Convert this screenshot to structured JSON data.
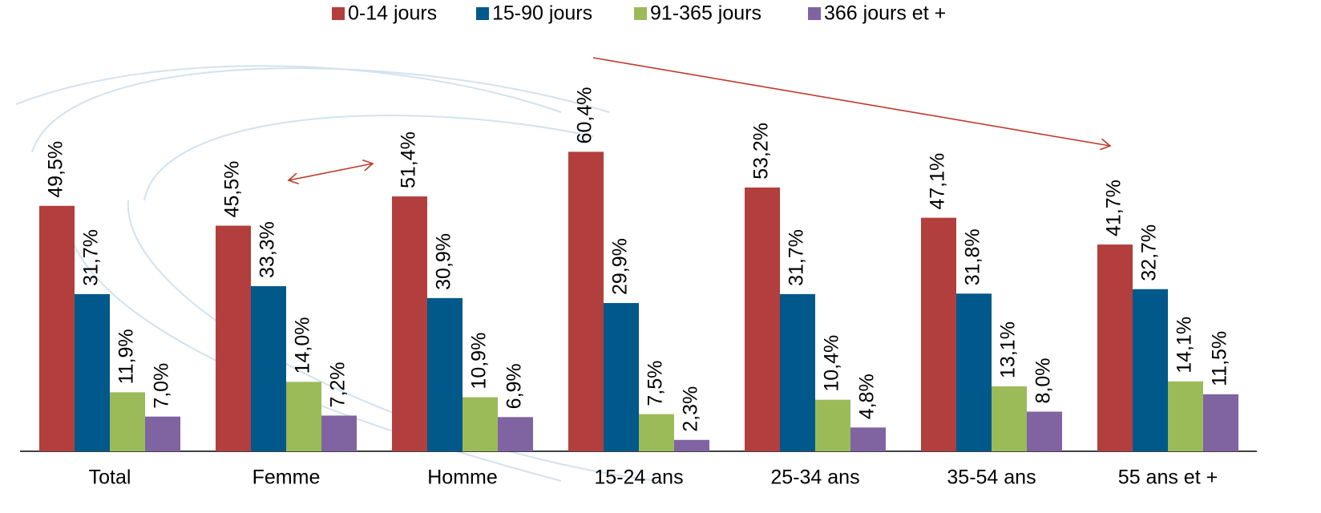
{
  "chart_data": {
    "type": "bar",
    "categories": [
      "Total",
      "Femme",
      "Homme",
      "15-24 ans",
      "25-34 ans",
      "35-54 ans",
      "55 ans et +"
    ],
    "series": [
      {
        "name": "0-14 jours",
        "color": "#b23f3d",
        "values": [
          49.5,
          45.5,
          51.4,
          60.4,
          53.2,
          47.1,
          41.7
        ],
        "value_labels": [
          "49,5%",
          "45,5%",
          "51,4%",
          "60,4%",
          "53,2%",
          "47,1%",
          "41,7%"
        ]
      },
      {
        "name": "15-90 jours",
        "color": "#00598a",
        "values": [
          31.7,
          33.3,
          30.9,
          29.9,
          31.7,
          31.8,
          32.7
        ],
        "value_labels": [
          "31,7%",
          "33,3%",
          "30,9%",
          "29,9%",
          "31,7%",
          "31,8%",
          "32,7%"
        ]
      },
      {
        "name": "91-365 jours",
        "color": "#9bbb59",
        "values": [
          11.9,
          14.0,
          10.9,
          7.5,
          10.4,
          13.1,
          14.1
        ],
        "value_labels": [
          "11,9%",
          "14,0%",
          "10,9%",
          "7,5%",
          "10,4%",
          "13,1%",
          "14,1%"
        ]
      },
      {
        "name": "366 jours et +",
        "color": "#8064a2",
        "values": [
          7.0,
          7.2,
          6.9,
          2.3,
          4.8,
          8.0,
          11.5
        ],
        "value_labels": [
          "7,0%",
          "7,2%",
          "6,9%",
          "2,3%",
          "4,8%",
          "8,0%",
          "11,5%"
        ]
      }
    ],
    "ylim": [
      0,
      70
    ],
    "legend": "top"
  }
}
